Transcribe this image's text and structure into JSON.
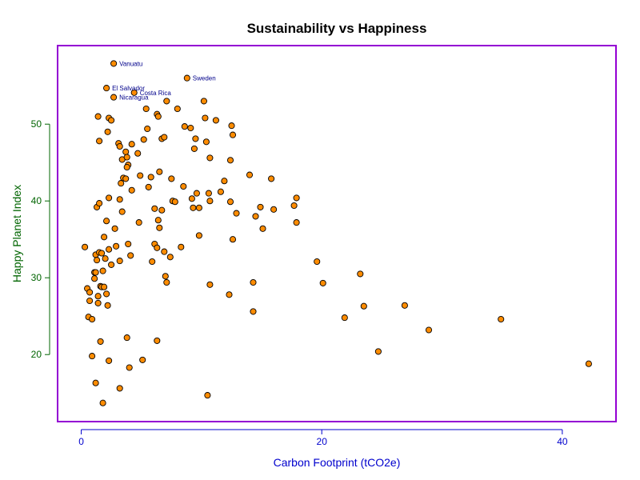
{
  "chart_data": {
    "type": "scatter",
    "title": "Sustainability vs Happiness",
    "xlabel": "Carbon Footprint (tCO2e)",
    "ylabel": "Happy Planet Index",
    "xlim": [
      -1.5,
      44
    ],
    "ylim": [
      12,
      59.5
    ],
    "xticks": [
      0,
      20,
      40
    ],
    "yticks": [
      20,
      30,
      40,
      50
    ],
    "grid": false,
    "colors": {
      "marker_fill": "#ff8c00",
      "marker_edge": "#000000",
      "border": "#9400d3",
      "xlabel": "#0000cd",
      "ylabel": "#006400",
      "xtick": "#0000cd",
      "ytick": "#006400",
      "annotation": "#00008b"
    },
    "annotations": [
      {
        "text": "Vanuatu",
        "x": 2.7,
        "y": 57.9
      },
      {
        "text": "Sweden",
        "x": 8.8,
        "y": 56.0
      },
      {
        "text": "El Salvador",
        "x": 2.1,
        "y": 54.7
      },
      {
        "text": "Costa Rica",
        "x": 4.4,
        "y": 54.1
      },
      {
        "text": "Nicaragua",
        "x": 2.7,
        "y": 53.5
      }
    ],
    "points": [
      [
        2.7,
        57.9
      ],
      [
        8.8,
        56.0
      ],
      [
        2.1,
        54.7
      ],
      [
        4.4,
        54.1
      ],
      [
        2.7,
        53.5
      ],
      [
        0.3,
        34.0
      ],
      [
        0.5,
        28.6
      ],
      [
        0.6,
        24.9
      ],
      [
        0.7,
        28.1
      ],
      [
        0.7,
        27.0
      ],
      [
        0.9,
        19.8
      ],
      [
        0.9,
        24.6
      ],
      [
        1.1,
        29.9
      ],
      [
        1.1,
        30.7
      ],
      [
        1.2,
        33.0
      ],
      [
        1.2,
        30.7
      ],
      [
        1.2,
        16.3
      ],
      [
        1.3,
        32.3
      ],
      [
        1.3,
        39.2
      ],
      [
        1.4,
        51.0
      ],
      [
        1.4,
        27.6
      ],
      [
        1.4,
        26.7
      ],
      [
        1.5,
        47.8
      ],
      [
        1.5,
        33.3
      ],
      [
        1.5,
        39.7
      ],
      [
        1.6,
        28.9
      ],
      [
        1.6,
        21.7
      ],
      [
        1.7,
        33.2
      ],
      [
        1.7,
        28.8
      ],
      [
        1.8,
        30.9
      ],
      [
        1.8,
        13.7
      ],
      [
        1.9,
        28.8
      ],
      [
        1.9,
        35.3
      ],
      [
        2.0,
        32.5
      ],
      [
        2.1,
        37.4
      ],
      [
        2.1,
        27.9
      ],
      [
        2.2,
        49.0
      ],
      [
        2.2,
        26.4
      ],
      [
        2.3,
        50.8
      ],
      [
        2.3,
        40.4
      ],
      [
        2.3,
        33.7
      ],
      [
        2.3,
        19.2
      ],
      [
        2.5,
        50.5
      ],
      [
        2.5,
        31.7
      ],
      [
        2.8,
        36.4
      ],
      [
        2.9,
        34.1
      ],
      [
        3.1,
        47.5
      ],
      [
        3.2,
        47.1
      ],
      [
        3.2,
        40.2
      ],
      [
        3.2,
        32.2
      ],
      [
        3.2,
        15.6
      ],
      [
        3.3,
        42.3
      ],
      [
        3.4,
        38.6
      ],
      [
        3.4,
        45.4
      ],
      [
        3.5,
        43.0
      ],
      [
        3.7,
        46.4
      ],
      [
        3.7,
        42.9
      ],
      [
        3.8,
        45.7
      ],
      [
        3.9,
        44.7
      ],
      [
        3.8,
        44.4
      ],
      [
        3.8,
        22.2
      ],
      [
        3.9,
        34.4
      ],
      [
        4.0,
        18.3
      ],
      [
        4.1,
        32.9
      ],
      [
        4.2,
        41.4
      ],
      [
        4.2,
        47.4
      ],
      [
        4.7,
        46.2
      ],
      [
        4.8,
        37.2
      ],
      [
        4.9,
        43.3
      ],
      [
        5.1,
        19.3
      ],
      [
        5.2,
        48.0
      ],
      [
        5.4,
        52.0
      ],
      [
        5.5,
        49.4
      ],
      [
        5.6,
        41.8
      ],
      [
        5.8,
        43.1
      ],
      [
        5.9,
        32.1
      ],
      [
        6.1,
        34.4
      ],
      [
        6.1,
        39.0
      ],
      [
        6.3,
        51.3
      ],
      [
        6.4,
        51.0
      ],
      [
        6.3,
        33.9
      ],
      [
        6.3,
        21.8
      ],
      [
        6.4,
        37.5
      ],
      [
        6.5,
        43.8
      ],
      [
        6.5,
        36.5
      ],
      [
        6.7,
        48.1
      ],
      [
        6.7,
        38.8
      ],
      [
        6.9,
        48.3
      ],
      [
        6.9,
        33.4
      ],
      [
        7.0,
        30.2
      ],
      [
        7.1,
        29.4
      ],
      [
        7.1,
        53.0
      ],
      [
        7.4,
        32.7
      ],
      [
        7.5,
        42.9
      ],
      [
        7.6,
        40.0
      ],
      [
        7.8,
        39.9
      ],
      [
        8.0,
        52.0
      ],
      [
        8.3,
        34.0
      ],
      [
        8.5,
        41.9
      ],
      [
        8.6,
        49.7
      ],
      [
        9.1,
        49.5
      ],
      [
        9.2,
        40.3
      ],
      [
        9.3,
        39.1
      ],
      [
        9.4,
        46.8
      ],
      [
        9.5,
        48.1
      ],
      [
        9.6,
        41.0
      ],
      [
        9.8,
        39.1
      ],
      [
        9.8,
        35.5
      ],
      [
        10.2,
        53.0
      ],
      [
        10.3,
        50.8
      ],
      [
        10.4,
        47.7
      ],
      [
        10.5,
        14.7
      ],
      [
        10.6,
        41.0
      ],
      [
        10.7,
        45.6
      ],
      [
        10.7,
        40.0
      ],
      [
        10.7,
        29.1
      ],
      [
        11.2,
        50.5
      ],
      [
        11.6,
        41.2
      ],
      [
        11.9,
        42.6
      ],
      [
        12.3,
        27.8
      ],
      [
        12.4,
        39.9
      ],
      [
        12.4,
        45.3
      ],
      [
        12.5,
        49.8
      ],
      [
        12.6,
        48.6
      ],
      [
        12.6,
        35.0
      ],
      [
        12.9,
        38.4
      ],
      [
        14.0,
        43.4
      ],
      [
        14.3,
        29.4
      ],
      [
        14.3,
        25.6
      ],
      [
        14.5,
        38.0
      ],
      [
        14.9,
        39.2
      ],
      [
        15.1,
        36.4
      ],
      [
        15.8,
        42.9
      ],
      [
        16.0,
        38.9
      ],
      [
        17.7,
        39.4
      ],
      [
        17.9,
        40.4
      ],
      [
        17.9,
        37.2
      ],
      [
        19.6,
        32.1
      ],
      [
        20.1,
        29.3
      ],
      [
        21.9,
        24.8
      ],
      [
        23.2,
        30.5
      ],
      [
        23.5,
        26.3
      ],
      [
        24.7,
        20.4
      ],
      [
        26.9,
        26.4
      ],
      [
        28.9,
        23.2
      ],
      [
        34.9,
        24.6
      ],
      [
        42.2,
        18.8
      ]
    ]
  }
}
